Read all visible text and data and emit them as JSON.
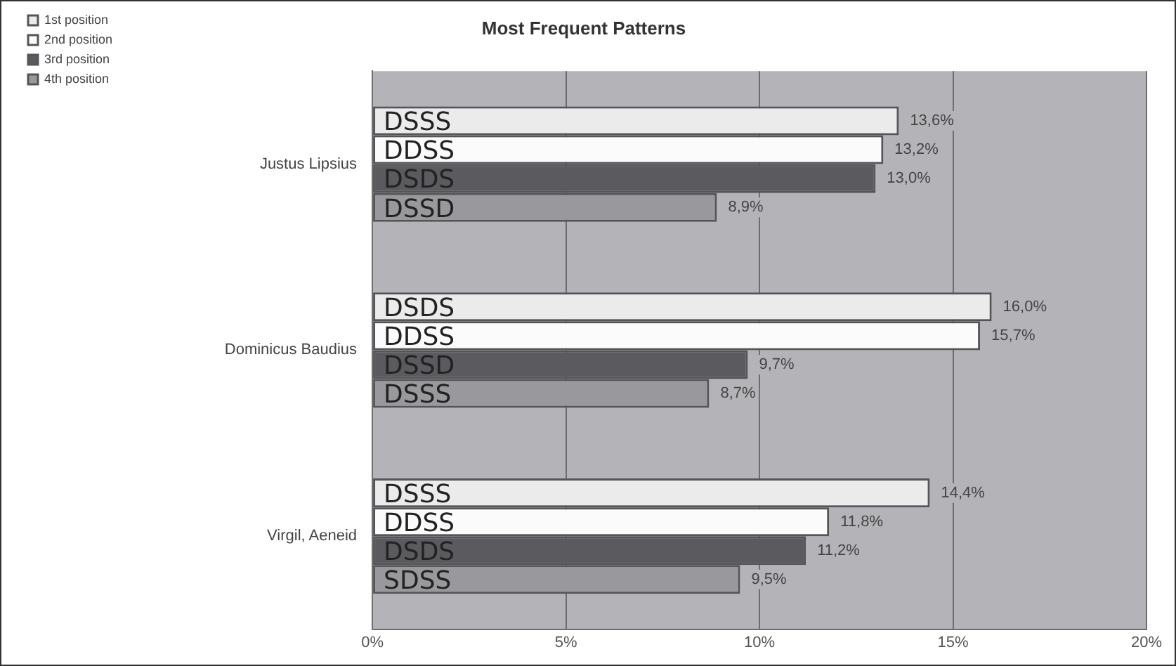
{
  "chart_data": {
    "type": "bar",
    "orientation": "horizontal",
    "title": "Most Frequent Patterns",
    "categories": [
      "Justus Lipsius",
      "Dominicus Baudius",
      "Virgil, Aeneid"
    ],
    "series": [
      {
        "name": "1st position",
        "color": "#ebebeb",
        "values": [
          13.6,
          16.0,
          14.4
        ],
        "value_labels": [
          "13,6%",
          "16,0%",
          "14,4%"
        ]
      },
      {
        "name": "2nd position",
        "color": "#fbfbfb",
        "values": [
          13.2,
          15.7,
          11.8
        ],
        "value_labels": [
          "13,2%",
          "15,7%",
          "11,8%"
        ]
      },
      {
        "name": "3rd position",
        "color": "#5b5b5f",
        "values": [
          13.0,
          9.7,
          11.2
        ],
        "value_labels": [
          "13,0%",
          "9,7%",
          "11,2%"
        ]
      },
      {
        "name": "4th position",
        "color": "#99999d",
        "values": [
          8.9,
          8.7,
          9.5
        ],
        "value_labels": [
          "8,9%",
          "8,7%",
          "9,5%"
        ]
      }
    ],
    "xlim": [
      0,
      20
    ],
    "xticks": [
      {
        "value": 0,
        "label": "0%"
      },
      {
        "value": 5,
        "label": "5%"
      },
      {
        "value": 10,
        "label": "10%"
      },
      {
        "value": 15,
        "label": "15%"
      },
      {
        "value": 20,
        "label": "20%"
      }
    ],
    "grid": "x",
    "legend": "top left",
    "annotations": [
      {
        "text": "DSSS",
        "y": "Justus Lipsius"
      },
      {
        "text": "DDSS",
        "y": "Justus Lipsius"
      },
      {
        "text": "DSDS",
        "y": "Justus Lipsius"
      },
      {
        "text": "DSSD",
        "y": "Justus Lipsius"
      },
      {
        "text": "DSDS",
        "y": "Dominicus Baudius"
      },
      {
        "text": "DDSS",
        "y": "Dominicus Baudius"
      },
      {
        "text": "DSSD",
        "y": "Dominicus Baudius"
      },
      {
        "text": "DSSS",
        "y": "Dominicus Baudius"
      },
      {
        "text": "DSSS",
        "y": "Virgil, Aeneid"
      },
      {
        "text": "DDSS",
        "y": "Virgil, Aeneid"
      },
      {
        "text": "DSDS",
        "y": "Virgil, Aeneid"
      },
      {
        "text": "SDSS",
        "y": "Virgil, Aeneid"
      }
    ]
  }
}
